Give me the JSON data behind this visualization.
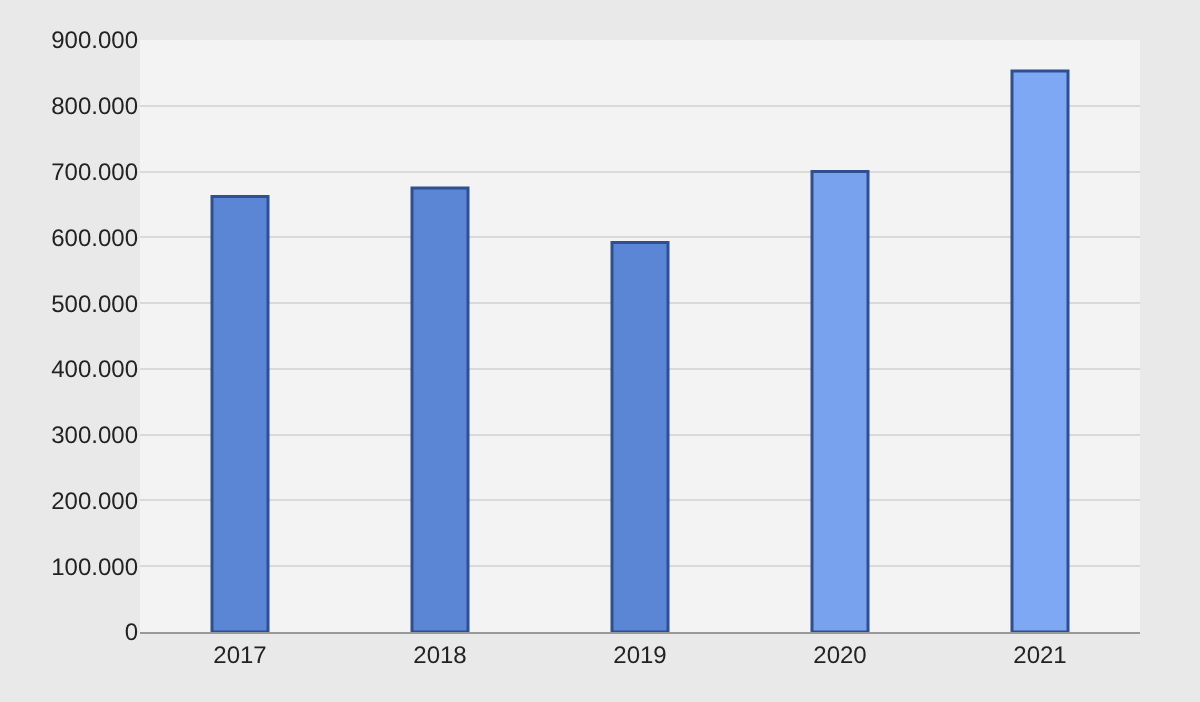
{
  "chart_data": {
    "type": "bar",
    "categories": [
      "2017",
      "2018",
      "2019",
      "2020",
      "2021"
    ],
    "values": [
      662000,
      675000,
      592000,
      700000,
      853000
    ],
    "colors": [
      "#5b86d6",
      "#5b86d6",
      "#5b86d6",
      "#78a2ee",
      "#7ea8f4"
    ],
    "ylim": [
      0,
      900000
    ],
    "yticks": [
      {
        "value": 0,
        "label": "0"
      },
      {
        "value": 100000,
        "label": "100.000"
      },
      {
        "value": 200000,
        "label": "200.000"
      },
      {
        "value": 300000,
        "label": "300.000"
      },
      {
        "value": 400000,
        "label": "400.000"
      },
      {
        "value": 500000,
        "label": "500.000"
      },
      {
        "value": 600000,
        "label": "600.000"
      },
      {
        "value": 700000,
        "label": "700.000"
      },
      {
        "value": 800000,
        "label": "800.000"
      },
      {
        "value": 900000,
        "label": "900.000"
      }
    ],
    "grid": "y"
  }
}
